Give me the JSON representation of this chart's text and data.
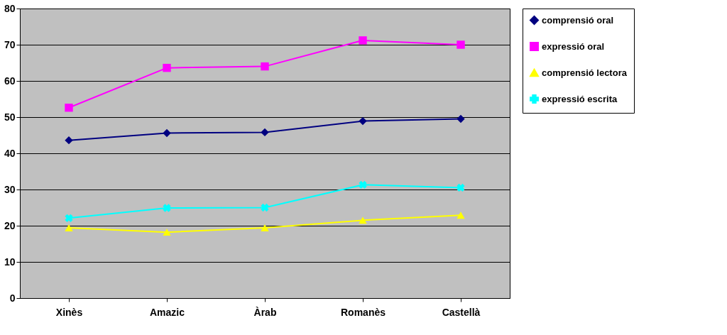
{
  "chart_data": {
    "type": "line",
    "categories": [
      "Xinès",
      "Amazic",
      "Àrab",
      "Romanès",
      "Castellà"
    ],
    "series": [
      {
        "name": "comprensió oral",
        "color": "#000080",
        "marker": "diamond",
        "values": [
          43.6,
          45.6,
          45.8,
          48.9,
          49.5
        ]
      },
      {
        "name": "expressió oral",
        "color": "#ff00ff",
        "marker": "square",
        "values": [
          52.6,
          63.6,
          64.0,
          71.2,
          70.0
        ]
      },
      {
        "name": "comprensió lectora",
        "color": "#ffff00",
        "marker": "triangle",
        "values": [
          19.4,
          18.2,
          19.4,
          21.5,
          22.9
        ]
      },
      {
        "name": "expressió escrita",
        "color": "#00ffff",
        "marker": "cross",
        "values": [
          22.1,
          24.9,
          25.0,
          31.3,
          30.5
        ]
      }
    ],
    "ylim": [
      0,
      80
    ],
    "yticks": [
      0,
      10,
      20,
      30,
      40,
      50,
      60,
      70,
      80
    ],
    "grid": "y",
    "legend": "right",
    "line_style": "solid"
  }
}
